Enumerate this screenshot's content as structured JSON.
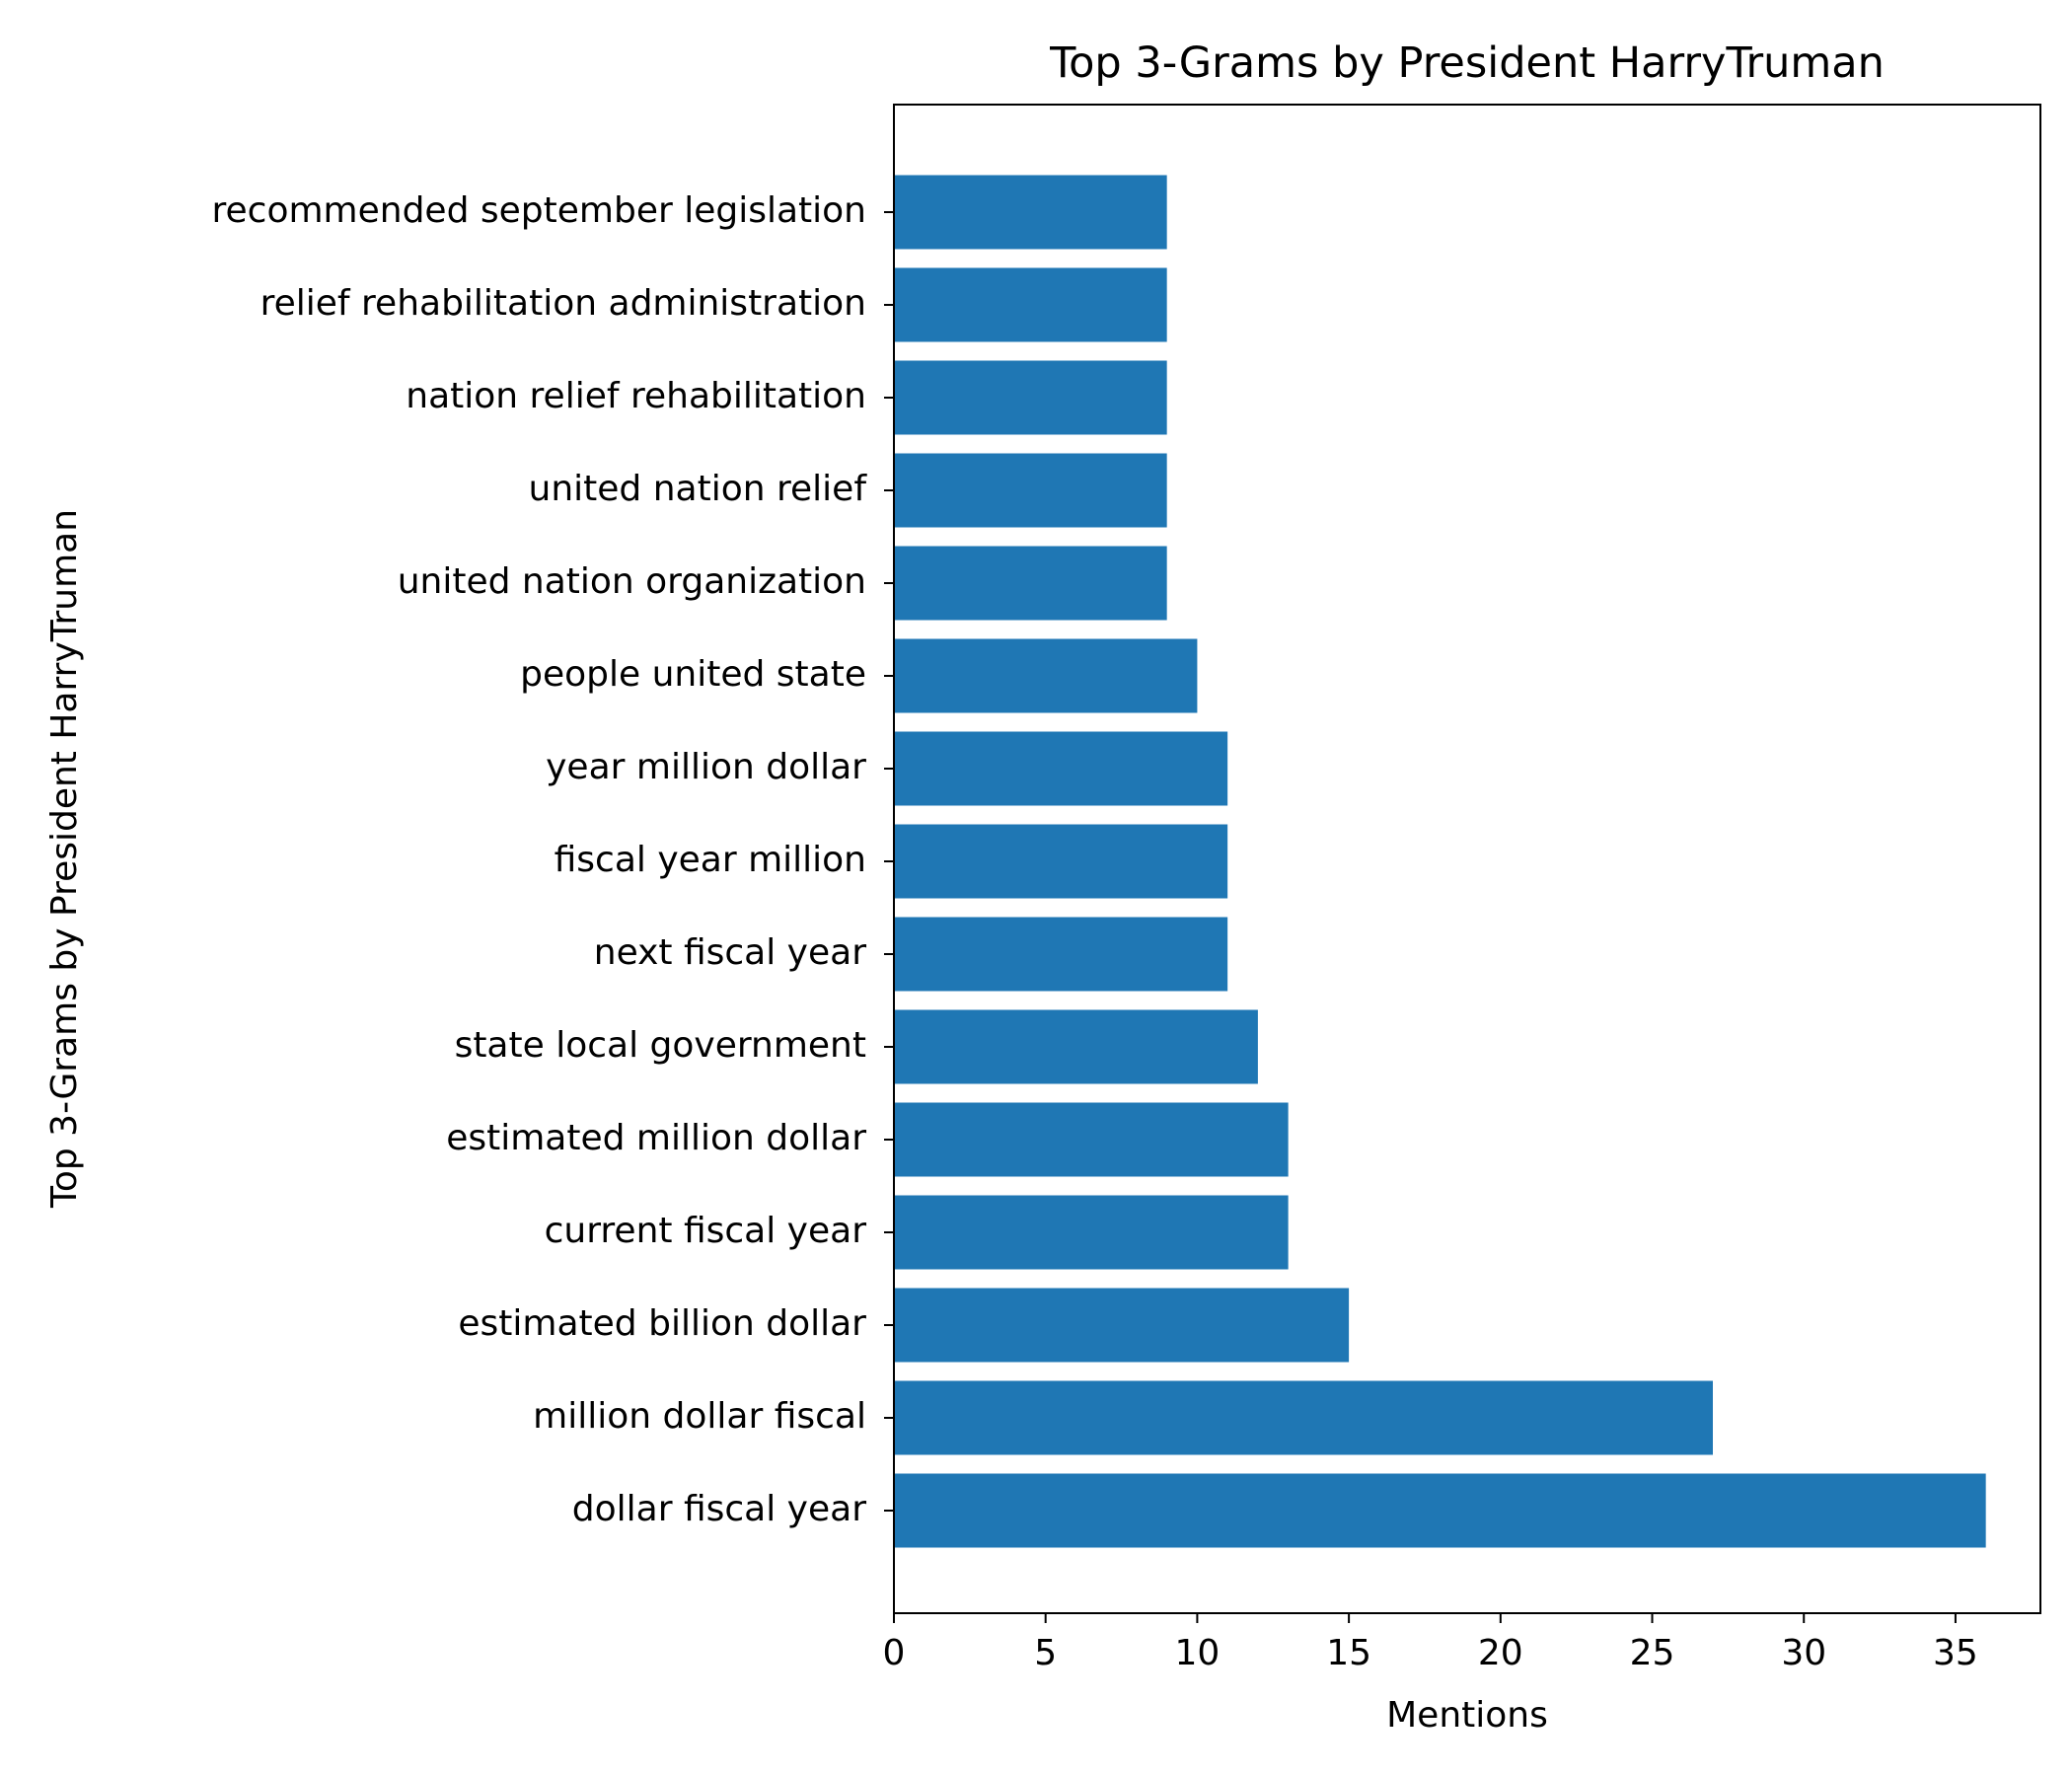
{
  "chart_data": {
    "type": "bar",
    "orientation": "horizontal",
    "title": "Top 3-Grams by President HarryTruman",
    "xlabel": "Mentions",
    "ylabel": "Top 3-Grams by President HarryTruman",
    "categories": [
      "dollar fiscal year",
      "million dollar fiscal",
      "estimated billion dollar",
      "current fiscal year",
      "estimated million dollar",
      "state local government",
      "next fiscal year",
      "fiscal year million",
      "year million dollar",
      "people united state",
      "united nation organization",
      "united nation relief",
      "nation relief rehabilitation",
      "relief rehabilitation administration",
      "recommended september legislation"
    ],
    "values": [
      36,
      27,
      15,
      13,
      13,
      12,
      11,
      11,
      11,
      10,
      9,
      9,
      9,
      9,
      9
    ],
    "xlim": [
      0,
      37.8
    ],
    "xticks": [
      0,
      5,
      10,
      15,
      20,
      25,
      30,
      35
    ],
    "grid": false,
    "colors": {
      "bar": "#1f77b4"
    }
  }
}
